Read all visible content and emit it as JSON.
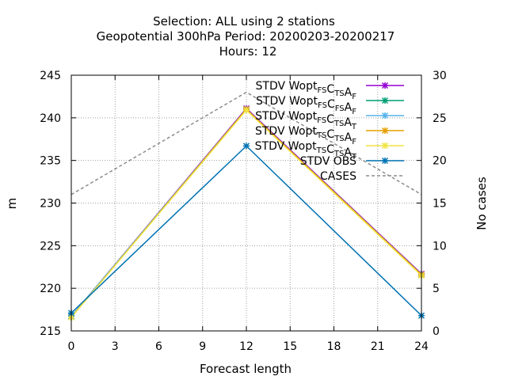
{
  "chart_data": {
    "type": "line",
    "title_lines": [
      "Selection: ALL using     2 stations",
      "Geopotential 300hPa   Period: 20200203-20200217",
      "Hours:  12"
    ],
    "xlabel": "Forecast length",
    "ylabel": "m",
    "y2label": "No cases",
    "x_ticks": [
      0,
      3,
      6,
      9,
      12,
      15,
      18,
      21,
      24
    ],
    "y_ticks": [
      215,
      220,
      225,
      230,
      235,
      240,
      245
    ],
    "y2_ticks": [
      0,
      5,
      10,
      15,
      20,
      25,
      30
    ],
    "xlim": [
      0,
      24
    ],
    "ylim": [
      215,
      245
    ],
    "y2lim": [
      0,
      30
    ],
    "grid": true,
    "legend_position": "top-right",
    "series": [
      {
        "label_parts": [
          [
            "STDV Wopt",
            ""
          ],
          [
            "FS",
            "sub"
          ],
          [
            "C",
            ""
          ],
          [
            "TS",
            "sub"
          ],
          [
            "A",
            ""
          ],
          [
            "F",
            "sub"
          ]
        ],
        "color": "#9400d3",
        "axis": "y",
        "x": [
          0,
          12,
          24
        ],
        "values": [
          216.7,
          241.1,
          221.7
        ]
      },
      {
        "label_parts": [
          [
            "STDV Wopt",
            ""
          ],
          [
            "FS",
            "sub"
          ],
          [
            "C",
            ""
          ],
          [
            "FS",
            "sub"
          ],
          [
            "A",
            ""
          ],
          [
            "F",
            "sub"
          ]
        ],
        "color": "#009e73",
        "axis": "y",
        "x": [
          0,
          12,
          24
        ],
        "values": [
          216.7,
          241.0,
          221.6
        ]
      },
      {
        "label_parts": [
          [
            "STDV Wopt",
            ""
          ],
          [
            "FS",
            "sub"
          ],
          [
            "C",
            ""
          ],
          [
            "TS",
            "sub"
          ],
          [
            "A",
            ""
          ],
          [
            "T",
            "sub"
          ]
        ],
        "color": "#56b4e9",
        "axis": "y",
        "x": [
          0,
          12,
          24
        ],
        "values": [
          216.7,
          241.0,
          221.6
        ]
      },
      {
        "label_parts": [
          [
            "STDV Wopt",
            ""
          ],
          [
            "TS",
            "sub"
          ],
          [
            "C",
            ""
          ],
          [
            "TS",
            "sub"
          ],
          [
            "A",
            ""
          ],
          [
            "F",
            "sub"
          ]
        ],
        "color": "#e69f00",
        "axis": "y",
        "x": [
          0,
          12,
          24
        ],
        "values": [
          216.6,
          241.0,
          221.6
        ]
      },
      {
        "label_parts": [
          [
            "STDV Wopt",
            ""
          ],
          [
            "TS",
            "sub"
          ],
          [
            "C",
            ""
          ],
          [
            "TS",
            "sub"
          ],
          [
            "A",
            ""
          ],
          [
            "T",
            "sub"
          ]
        ],
        "color": "#f0e442",
        "axis": "y",
        "x": [
          0,
          12,
          24
        ],
        "values": [
          216.6,
          240.9,
          221.5
        ]
      },
      {
        "label_parts": [
          [
            "STDV OBS",
            ""
          ]
        ],
        "color": "#0072b2",
        "axis": "y",
        "x": [
          0,
          12,
          24
        ],
        "values": [
          217.1,
          236.7,
          216.8
        ]
      },
      {
        "label_parts": [
          [
            "CASES",
            ""
          ]
        ],
        "color": "#8c8c8c",
        "axis": "y2",
        "dashed": true,
        "x": [
          0,
          12,
          24
        ],
        "values": [
          16,
          28,
          16
        ]
      }
    ]
  }
}
